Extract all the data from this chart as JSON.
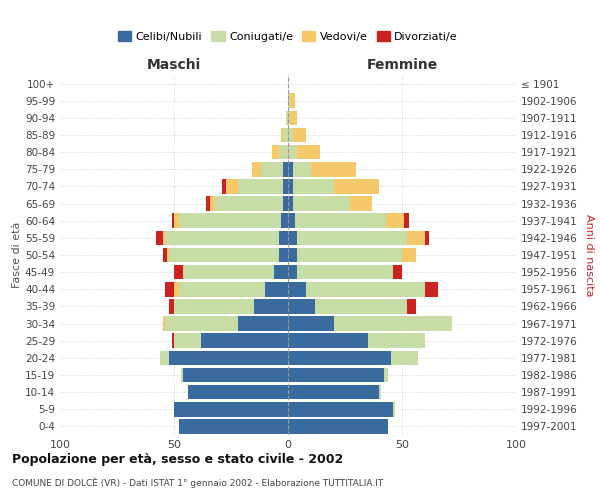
{
  "age_groups": [
    "0-4",
    "5-9",
    "10-14",
    "15-19",
    "20-24",
    "25-29",
    "30-34",
    "35-39",
    "40-44",
    "45-49",
    "50-54",
    "55-59",
    "60-64",
    "65-69",
    "70-74",
    "75-79",
    "80-84",
    "85-89",
    "90-94",
    "95-99",
    "100+"
  ],
  "birth_years": [
    "1997-2001",
    "1992-1996",
    "1987-1991",
    "1982-1986",
    "1977-1981",
    "1972-1976",
    "1967-1971",
    "1962-1966",
    "1957-1961",
    "1952-1956",
    "1947-1951",
    "1942-1946",
    "1937-1941",
    "1932-1936",
    "1927-1931",
    "1922-1926",
    "1917-1921",
    "1912-1916",
    "1907-1911",
    "1902-1906",
    "≤ 1901"
  ],
  "male": {
    "celibi": [
      48,
      50,
      44,
      46,
      52,
      38,
      22,
      15,
      10,
      6,
      4,
      4,
      3,
      2,
      2,
      2,
      0,
      0,
      0,
      0,
      0
    ],
    "coniugati": [
      0,
      0,
      0,
      1,
      4,
      12,
      32,
      35,
      38,
      40,
      48,
      50,
      45,
      30,
      20,
      10,
      4,
      2,
      1,
      0,
      0
    ],
    "vedovi": [
      0,
      0,
      0,
      0,
      0,
      0,
      1,
      0,
      2,
      0,
      1,
      1,
      2,
      2,
      5,
      4,
      3,
      1,
      0,
      0,
      0
    ],
    "divorziati": [
      0,
      0,
      0,
      0,
      0,
      1,
      0,
      2,
      4,
      4,
      2,
      3,
      1,
      2,
      2,
      0,
      0,
      0,
      0,
      0,
      0
    ]
  },
  "female": {
    "nubili": [
      44,
      46,
      40,
      42,
      45,
      35,
      20,
      12,
      8,
      4,
      4,
      4,
      3,
      2,
      2,
      2,
      0,
      0,
      0,
      0,
      0
    ],
    "coniugate": [
      0,
      1,
      1,
      2,
      12,
      25,
      52,
      40,
      52,
      42,
      46,
      48,
      40,
      25,
      18,
      8,
      4,
      2,
      1,
      1,
      0
    ],
    "vedove": [
      0,
      0,
      0,
      0,
      0,
      0,
      0,
      0,
      0,
      0,
      6,
      8,
      8,
      10,
      20,
      20,
      10,
      6,
      3,
      2,
      0
    ],
    "divorziate": [
      0,
      0,
      0,
      0,
      0,
      0,
      0,
      4,
      6,
      4,
      0,
      2,
      2,
      0,
      0,
      0,
      0,
      0,
      0,
      0,
      0
    ]
  },
  "colors": {
    "celibi": "#3a6b9e",
    "coniugati": "#c8dca5",
    "vedovi": "#f5c96a",
    "divorziati": "#cc2222"
  },
  "title": "Popolazione per età, sesso e stato civile - 2002",
  "subtitle": "COMUNE DI DOLCÈ (VR) - Dati ISTAT 1° gennaio 2002 - Elaborazione TUTTITALIA.IT",
  "xlabel_left": "Maschi",
  "xlabel_right": "Femmine",
  "ylabel_left": "Fasce di età",
  "ylabel_right": "Anni di nascita",
  "xlim": 100,
  "bg_color": "#ffffff",
  "grid_color": "#cccccc"
}
